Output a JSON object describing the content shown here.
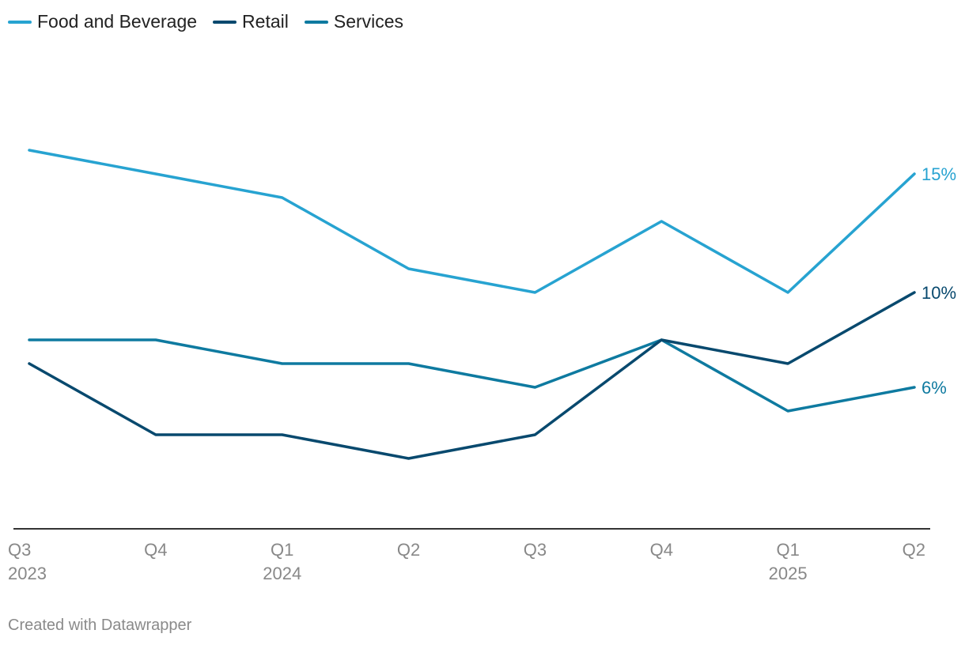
{
  "chart_data": {
    "type": "line",
    "title": "",
    "xlabel": "",
    "ylabel": "",
    "categories": [
      {
        "quarter": "Q3",
        "year": "2023"
      },
      {
        "quarter": "Q4",
        "year": ""
      },
      {
        "quarter": "Q1",
        "year": "2024"
      },
      {
        "quarter": "Q2",
        "year": ""
      },
      {
        "quarter": "Q3",
        "year": ""
      },
      {
        "quarter": "Q4",
        "year": ""
      },
      {
        "quarter": "Q1",
        "year": "2025"
      },
      {
        "quarter": "Q2",
        "year": ""
      }
    ],
    "ylim": [
      0,
      18
    ],
    "grid": false,
    "legend": "top-left",
    "series": [
      {
        "name": "Food and Beverage",
        "color": "#27a3d1",
        "values": [
          16,
          15,
          14,
          11,
          10,
          13,
          10,
          15
        ],
        "end_label": "15%"
      },
      {
        "name": "Retail",
        "color": "#08496e",
        "values": [
          7,
          4,
          4,
          3,
          4,
          8,
          7,
          10
        ],
        "end_label": "10%"
      },
      {
        "name": "Services",
        "color": "#0e7aa0",
        "values": [
          8,
          8,
          7,
          7,
          6,
          8,
          5,
          6
        ],
        "end_label": "6%"
      }
    ]
  },
  "footer": {
    "credit": "Created with Datawrapper"
  }
}
